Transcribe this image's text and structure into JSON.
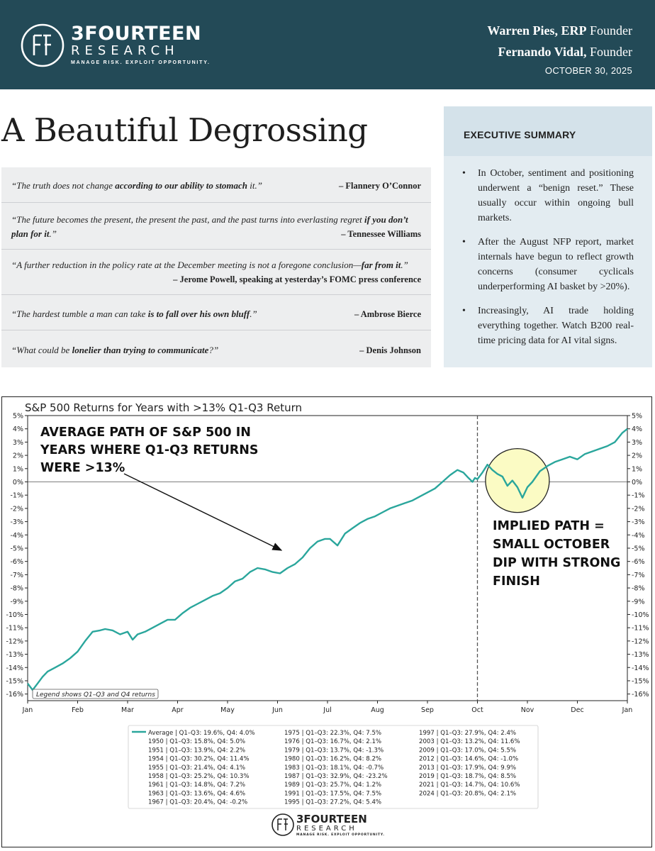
{
  "header": {
    "brand_line1": "3FOURTEEN",
    "brand_line2": "RESEARCH",
    "tagline": "MANAGE RISK. EXPLOIT OPPORTUNITY.",
    "authors": [
      {
        "name": "Warren Pies, ERP",
        "role": "Founder"
      },
      {
        "name": "Fernando Vidal,",
        "role": "Founder"
      }
    ],
    "date": "OCTOBER 30, 2025",
    "bg_color": "#234a57"
  },
  "title": "A Beautiful Degrossing",
  "quotes": [
    {
      "pre": "“The truth does not change ",
      "bold": "according to our ability to stomach",
      "post": " it.”",
      "author": "– Flannery O’Connor"
    },
    {
      "pre": "“The future becomes the present, the present the past, and the past turns into everlasting regret ",
      "bold": "if you don’t",
      "line2_bold": "plan for it",
      "line2_post": ".”",
      "author": "– Tennessee Williams"
    },
    {
      "pre": "“A further reduction in the policy rate at the December meeting is not a foregone conclusion—",
      "bold": "far from it",
      "post": ".”",
      "author": "– Jerome Powell, speaking at yesterday’s FOMC press conference"
    },
    {
      "pre": "“The hardest tumble a man can take ",
      "bold": "is to fall over his own bluff",
      "post": ".”",
      "author": "– Ambrose Bierce"
    },
    {
      "pre": "“What could be ",
      "bold": "lonelier than trying to communicate",
      "post": "?”",
      "author": "– Denis Johnson"
    }
  ],
  "executive_summary": {
    "heading": "EXECUTIVE SUMMARY",
    "bullets": [
      "In October, sentiment and positioning underwent a “benign reset.” These usually occur within ongoing bull markets.",
      "After the August NFP report, market internals have begun to reflect growth concerns (consumer cyclicals underperforming AI basket by >20%).",
      "Increasingly, AI trade holding everything together. Watch B200 real-time pricing data for AI vital signs."
    ]
  },
  "chart_data": {
    "type": "line",
    "title": "S&P 500 Returns for Years with >13% Q1-Q3 Return",
    "x_ticks": [
      "Jan",
      "Feb",
      "Mar",
      "Apr",
      "May",
      "Jun",
      "Jul",
      "Aug",
      "Sep",
      "Oct",
      "Nov",
      "Dec",
      "Jan"
    ],
    "y_ticks": [
      "5%",
      "4%",
      "3%",
      "2%",
      "1%",
      "0%",
      "-1%",
      "-2%",
      "-3%",
      "-4%",
      "-5%",
      "-6%",
      "-7%",
      "-8%",
      "-9%",
      "-10%",
      "-11%",
      "-12%",
      "-13%",
      "-14%",
      "-15%",
      "-16%"
    ],
    "ylim": [
      -16.5,
      5
    ],
    "xlim": [
      0,
      12
    ],
    "line_color": "#2aa69c",
    "series": [
      {
        "name": "Average | Q1–Q3: 19.6%, Q4: 4.0%",
        "x": [
          0,
          0.1,
          0.2,
          0.3,
          0.4,
          0.55,
          0.7,
          0.85,
          1.0,
          1.15,
          1.3,
          1.45,
          1.55,
          1.7,
          1.85,
          2.0,
          2.1,
          2.2,
          2.35,
          2.5,
          2.65,
          2.8,
          2.95,
          3.1,
          3.25,
          3.4,
          3.55,
          3.7,
          3.85,
          4.0,
          4.15,
          4.3,
          4.45,
          4.6,
          4.75,
          4.9,
          5.05,
          5.2,
          5.35,
          5.5,
          5.65,
          5.8,
          5.95,
          6.05,
          6.2,
          6.35,
          6.5,
          6.65,
          6.8,
          6.95,
          7.1,
          7.25,
          7.4,
          7.55,
          7.7,
          7.85,
          8.0,
          8.15,
          8.3,
          8.45,
          8.6,
          8.72,
          8.82,
          8.9,
          8.95,
          9.0,
          9.1,
          9.2,
          9.3,
          9.4,
          9.5,
          9.6,
          9.7,
          9.8,
          9.9,
          10.0,
          10.1,
          10.25,
          10.4,
          10.55,
          10.7,
          10.85,
          11.0,
          11.15,
          11.3,
          11.45,
          11.6,
          11.75,
          11.9,
          12.0
        ],
        "y": [
          -15.2,
          -15.7,
          -15.2,
          -14.7,
          -14.3,
          -14.0,
          -13.7,
          -13.3,
          -12.8,
          -12.0,
          -11.3,
          -11.2,
          -11.1,
          -11.2,
          -11.5,
          -11.3,
          -11.9,
          -11.5,
          -11.3,
          -11.0,
          -10.7,
          -10.4,
          -10.4,
          -9.9,
          -9.5,
          -9.2,
          -8.9,
          -8.6,
          -8.4,
          -8.0,
          -7.5,
          -7.3,
          -6.8,
          -6.5,
          -6.6,
          -6.8,
          -6.9,
          -6.5,
          -6.2,
          -5.7,
          -5.0,
          -4.5,
          -4.3,
          -4.3,
          -4.8,
          -3.9,
          -3.5,
          -3.1,
          -2.8,
          -2.6,
          -2.3,
          -2.0,
          -1.8,
          -1.6,
          -1.4,
          -1.1,
          -0.8,
          -0.5,
          0.0,
          0.5,
          0.9,
          0.7,
          0.3,
          0.0,
          0.3,
          0.2,
          0.7,
          1.3,
          0.9,
          0.6,
          0.4,
          -0.3,
          0.1,
          -0.4,
          -1.2,
          -0.4,
          0.0,
          0.8,
          1.2,
          1.5,
          1.7,
          1.9,
          1.7,
          2.1,
          2.3,
          2.5,
          2.7,
          3.0,
          3.7,
          4.0
        ]
      }
    ],
    "vline_x": 9.0,
    "hline_y": 0,
    "annotations": [
      {
        "lines": [
          "AVERAGE PATH OF S&P 500 IN",
          "YEARS WHERE Q1-Q3 RETURNS",
          "WERE >13%"
        ]
      },
      {
        "lines": [
          "IMPLIED PATH  =",
          "SMALL OCTOBER",
          "DIP WITH STRONG",
          "FINISH"
        ]
      }
    ],
    "legend_note": "Legend shows Q1–Q3 and Q4 returns",
    "legend_columns": [
      [
        "Average | Q1–Q3: 19.6%, Q4: 4.0%",
        "1950 | Q1–Q3: 15.8%, Q4: 5.0%",
        "1951 | Q1–Q3: 13.9%, Q4: 2.2%",
        "1954 | Q1–Q3: 30.2%, Q4: 11.4%",
        "1955 | Q1–Q3: 21.4%, Q4: 4.1%",
        "1958 | Q1–Q3: 25.2%, Q4: 10.3%",
        "1961 | Q1–Q3: 14.8%, Q4: 7.2%",
        "1963 | Q1–Q3: 13.6%, Q4: 4.6%",
        "1967 | Q1–Q3: 20.4%, Q4: -0.2%"
      ],
      [
        "1975 | Q1–Q3: 22.3%, Q4: 7.5%",
        "1976 | Q1–Q3: 16.7%, Q4: 2.1%",
        "1979 | Q1–Q3: 13.7%, Q4: -1.3%",
        "1980 | Q1–Q3: 16.2%, Q4: 8.2%",
        "1983 | Q1–Q3: 18.1%, Q4: -0.7%",
        "1987 | Q1–Q3: 32.9%, Q4: -23.2%",
        "1989 | Q1–Q3: 25.7%, Q4: 1.2%",
        "1991 | Q1–Q3: 17.5%, Q4: 7.5%",
        "1995 | Q1–Q3: 27.2%, Q4: 5.4%"
      ],
      [
        "1997 | Q1–Q3: 27.9%, Q4: 2.4%",
        "2003 | Q1–Q3: 13.2%, Q4: 11.6%",
        "2009 | Q1–Q3: 17.0%, Q4: 5.5%",
        "2012 | Q1–Q3: 14.6%, Q4: -1.0%",
        "2013 | Q1–Q3: 17.9%, Q4: 9.9%",
        "2019 | Q1–Q3: 18.7%, Q4: 8.5%",
        "2021 | Q1–Q3: 14.7%, Q4: 10.6%",
        "2024 | Q1–Q3: 20.8%, Q4: 2.1%"
      ]
    ],
    "footer_brand": [
      "3FOURTEEN",
      "RESEARCH",
      "MANAGE RISK. EXPLOIT OPPORTUNITY."
    ]
  }
}
